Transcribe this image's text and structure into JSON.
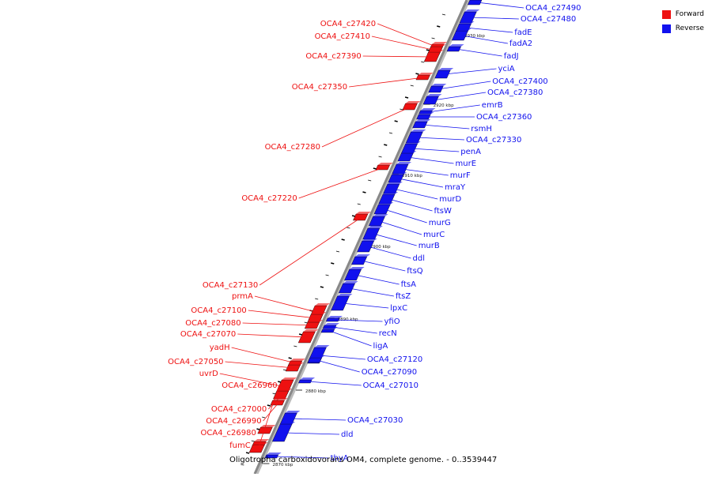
{
  "title": "Oligotropha carboxidovorans OM4, complete genome. - 0..3539447",
  "legend": [
    {
      "label": "Forward",
      "color": "#ee1111"
    },
    {
      "label": "Reverse",
      "color": "#1111ee"
    }
  ],
  "colors": {
    "forward": "#ee1111",
    "reverse": "#1111ee",
    "backbone": "#888888"
  },
  "ticks": [
    "2930 kbp",
    "2920 kbp",
    "2910 kbp",
    "2900 kbp",
    "2890 kbp",
    "2880 kbp",
    "2870 kbp"
  ],
  "genes": [
    {
      "name": "OCA4_c27490",
      "strand": "reverse"
    },
    {
      "name": "OCA4_c27480",
      "strand": "reverse"
    },
    {
      "name": "fadE",
      "strand": "reverse"
    },
    {
      "name": "fadA2",
      "strand": "reverse"
    },
    {
      "name": "fadJ",
      "strand": "reverse"
    },
    {
      "name": "yciA",
      "strand": "reverse"
    },
    {
      "name": "OCA4_c27400",
      "strand": "reverse"
    },
    {
      "name": "OCA4_c27380",
      "strand": "reverse"
    },
    {
      "name": "emrB",
      "strand": "reverse"
    },
    {
      "name": "OCA4_c27360",
      "strand": "reverse"
    },
    {
      "name": "rsmH",
      "strand": "reverse"
    },
    {
      "name": "OCA4_c27330",
      "strand": "reverse"
    },
    {
      "name": "penA",
      "strand": "reverse"
    },
    {
      "name": "murE",
      "strand": "reverse"
    },
    {
      "name": "murF",
      "strand": "reverse"
    },
    {
      "name": "mraY",
      "strand": "reverse"
    },
    {
      "name": "murD",
      "strand": "reverse"
    },
    {
      "name": "ftsW",
      "strand": "reverse"
    },
    {
      "name": "murG",
      "strand": "reverse"
    },
    {
      "name": "murC",
      "strand": "reverse"
    },
    {
      "name": "murB",
      "strand": "reverse"
    },
    {
      "name": "ddl",
      "strand": "reverse"
    },
    {
      "name": "ftsQ",
      "strand": "reverse"
    },
    {
      "name": "ftsA",
      "strand": "reverse"
    },
    {
      "name": "ftsZ",
      "strand": "reverse"
    },
    {
      "name": "lpxC",
      "strand": "reverse"
    },
    {
      "name": "yfiO",
      "strand": "reverse"
    },
    {
      "name": "recN",
      "strand": "reverse"
    },
    {
      "name": "ligA",
      "strand": "reverse"
    },
    {
      "name": "OCA4_c27120",
      "strand": "reverse"
    },
    {
      "name": "OCA4_c27090",
      "strand": "reverse"
    },
    {
      "name": "OCA4_c27030",
      "strand": "reverse"
    },
    {
      "name": "dld",
      "strand": "reverse"
    },
    {
      "name": "OCA4_c27010",
      "strand": "reverse"
    },
    {
      "name": "thyA",
      "strand": "reverse"
    },
    {
      "name": "OCA4_c27420",
      "strand": "forward"
    },
    {
      "name": "OCA4_c27410",
      "strand": "forward"
    },
    {
      "name": "OCA4_c27390",
      "strand": "forward"
    },
    {
      "name": "OCA4_c27350",
      "strand": "forward"
    },
    {
      "name": "OCA4_c27280",
      "strand": "forward"
    },
    {
      "name": "OCA4_c27220",
      "strand": "forward"
    },
    {
      "name": "OCA4_c27130",
      "strand": "forward"
    },
    {
      "name": "prmA",
      "strand": "forward"
    },
    {
      "name": "OCA4_c27100",
      "strand": "forward"
    },
    {
      "name": "OCA4_c27080",
      "strand": "forward"
    },
    {
      "name": "OCA4_c27070",
      "strand": "forward"
    },
    {
      "name": "yadH",
      "strand": "forward"
    },
    {
      "name": "OCA4_c27050",
      "strand": "forward"
    },
    {
      "name": "uvrD",
      "strand": "forward"
    },
    {
      "name": "OCA4_c27000",
      "strand": "forward"
    },
    {
      "name": "OCA4_c26990",
      "strand": "forward"
    },
    {
      "name": "OCA4_c26980",
      "strand": "forward"
    },
    {
      "name": "fumC",
      "strand": "forward"
    },
    {
      "name": "OCA4_c26960",
      "strand": "forward"
    }
  ]
}
